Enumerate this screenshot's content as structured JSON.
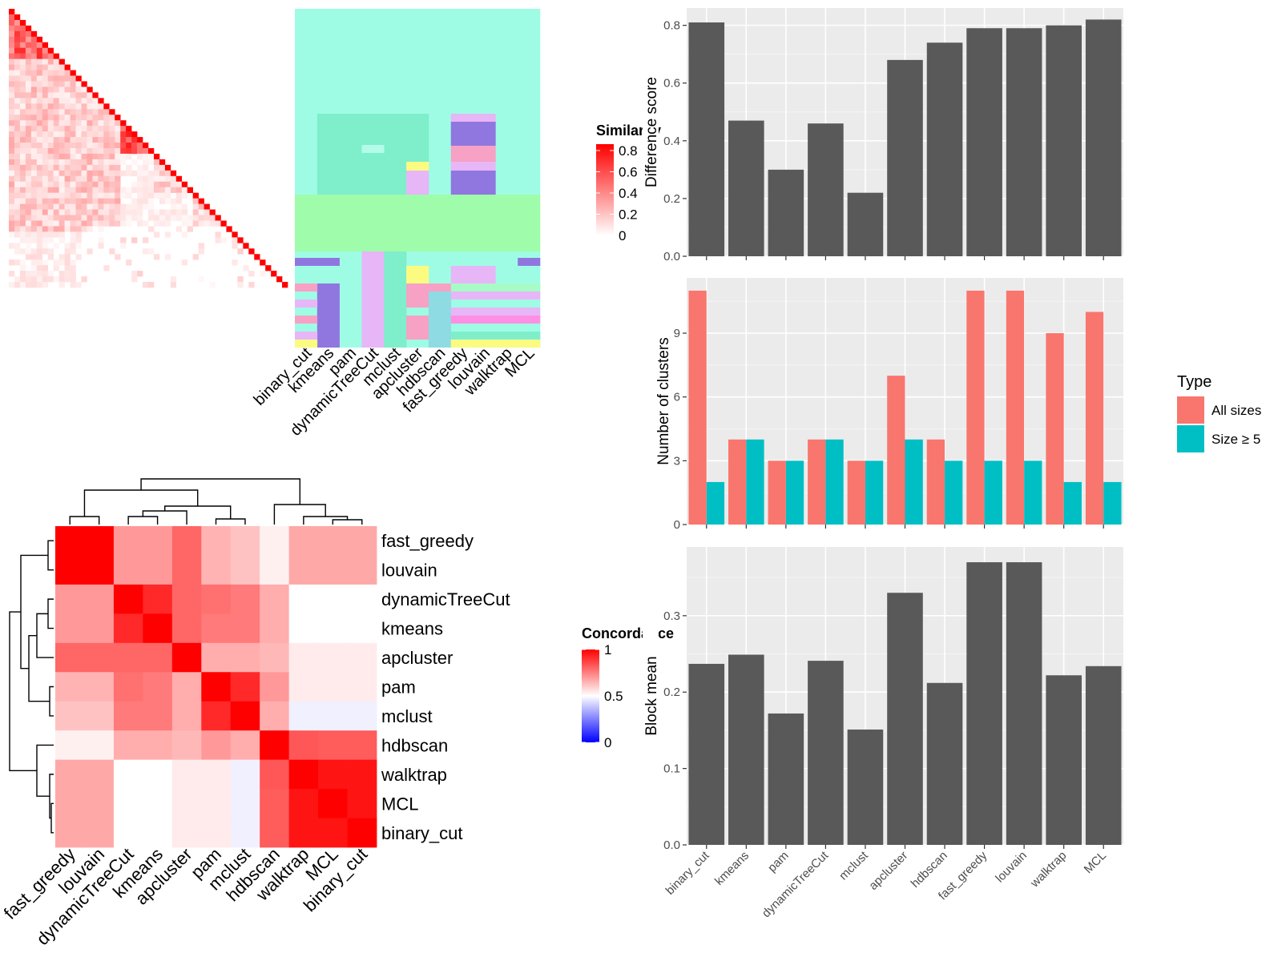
{
  "methods": [
    "binary_cut",
    "kmeans",
    "pam",
    "dynamicTreeCut",
    "mclust",
    "apcluster",
    "hdbscan",
    "fast_greedy",
    "louvain",
    "walktrap",
    "MCL"
  ],
  "similarity_panel": {
    "legend_title": "Similarity",
    "legend_ticks": [
      "0.8",
      "0.6",
      "0.4",
      "0.2",
      "0"
    ],
    "legend_values": [
      0.8,
      0.6,
      0.4,
      0.2,
      0
    ],
    "colors": {
      "low": "#ffffff",
      "high": "#ff0000"
    }
  },
  "concordance_panel": {
    "legend_title": "Concordance",
    "legend_ticks": [
      "1",
      "0.5",
      "0"
    ],
    "legend_values": [
      1,
      0.5,
      0
    ],
    "colors": {
      "low": "#0000ff",
      "mid": "#ffffff",
      "high": "#ff0000"
    },
    "order": [
      "fast_greedy",
      "louvain",
      "dynamicTreeCut",
      "kmeans",
      "apcluster",
      "pam",
      "mclust",
      "hdbscan",
      "walktrap",
      "MCL",
      "binary_cut"
    ],
    "matrix": [
      [
        1.0,
        1.0,
        0.7,
        0.7,
        0.8,
        0.65,
        0.62,
        0.53,
        0.67,
        0.67,
        0.67
      ],
      [
        1.0,
        1.0,
        0.7,
        0.7,
        0.8,
        0.65,
        0.62,
        0.53,
        0.67,
        0.67,
        0.67
      ],
      [
        0.7,
        0.7,
        1.0,
        0.92,
        0.8,
        0.78,
        0.76,
        0.66,
        0.5,
        0.5,
        0.5
      ],
      [
        0.7,
        0.7,
        0.92,
        1.0,
        0.8,
        0.76,
        0.76,
        0.66,
        0.5,
        0.5,
        0.5
      ],
      [
        0.8,
        0.8,
        0.8,
        0.8,
        1.0,
        0.66,
        0.66,
        0.64,
        0.54,
        0.54,
        0.54
      ],
      [
        0.65,
        0.65,
        0.78,
        0.76,
        0.66,
        1.0,
        0.92,
        0.7,
        0.54,
        0.54,
        0.54
      ],
      [
        0.62,
        0.62,
        0.76,
        0.76,
        0.66,
        0.92,
        1.0,
        0.66,
        0.47,
        0.47,
        0.47
      ],
      [
        0.53,
        0.53,
        0.66,
        0.66,
        0.64,
        0.7,
        0.66,
        1.0,
        0.83,
        0.82,
        0.82
      ],
      [
        0.67,
        0.67,
        0.5,
        0.5,
        0.54,
        0.54,
        0.47,
        0.83,
        1.0,
        0.96,
        0.96
      ],
      [
        0.67,
        0.67,
        0.5,
        0.5,
        0.54,
        0.54,
        0.47,
        0.82,
        0.96,
        1.0,
        0.96
      ],
      [
        0.67,
        0.67,
        0.5,
        0.5,
        0.54,
        0.54,
        0.47,
        0.82,
        0.96,
        0.96,
        1.0
      ]
    ]
  },
  "chart_data": [
    {
      "type": "bar",
      "categories": [
        "binary_cut",
        "kmeans",
        "pam",
        "dynamicTreeCut",
        "mclust",
        "apcluster",
        "hdbscan",
        "fast_greedy",
        "louvain",
        "walktrap",
        "MCL"
      ],
      "values": [
        0.81,
        0.47,
        0.3,
        0.46,
        0.22,
        0.68,
        0.74,
        0.79,
        0.79,
        0.8,
        0.82
      ],
      "ylabel": "Difference score",
      "yticks": [
        "0.0",
        "0.2",
        "0.4",
        "0.6",
        "0.8"
      ],
      "ylim": [
        0,
        0.86
      ],
      "bar_color": "#595959",
      "grid": true
    },
    {
      "type": "bar",
      "categories": [
        "binary_cut",
        "kmeans",
        "pam",
        "dynamicTreeCut",
        "mclust",
        "apcluster",
        "hdbscan",
        "fast_greedy",
        "louvain",
        "walktrap",
        "MCL"
      ],
      "series": [
        {
          "name": "All sizes",
          "values": [
            11,
            4,
            3,
            4,
            3,
            7,
            4,
            11,
            11,
            9,
            10
          ],
          "color": "#f8766d"
        },
        {
          "name": "Size ≥ 5",
          "values": [
            2,
            4,
            3,
            4,
            3,
            4,
            3,
            3,
            3,
            2,
            2
          ],
          "color": "#00bfc4"
        }
      ],
      "ylabel": "Number of clusters",
      "yticks": [
        "0",
        "3",
        "6",
        "9"
      ],
      "ylim": [
        0,
        11.6
      ],
      "legend_title": "Type",
      "legend_position": "right",
      "grid": true
    },
    {
      "type": "bar",
      "categories": [
        "binary_cut",
        "kmeans",
        "pam",
        "dynamicTreeCut",
        "mclust",
        "apcluster",
        "hdbscan",
        "fast_greedy",
        "louvain",
        "walktrap",
        "MCL"
      ],
      "values": [
        0.237,
        0.249,
        0.172,
        0.241,
        0.151,
        0.33,
        0.212,
        0.37,
        0.37,
        0.222,
        0.234
      ],
      "ylabel": "Block mean",
      "yticks": [
        "0.0",
        "0.1",
        "0.2",
        "0.3"
      ],
      "ylim": [
        0,
        0.39
      ],
      "bar_color": "#595959",
      "grid": true
    }
  ]
}
